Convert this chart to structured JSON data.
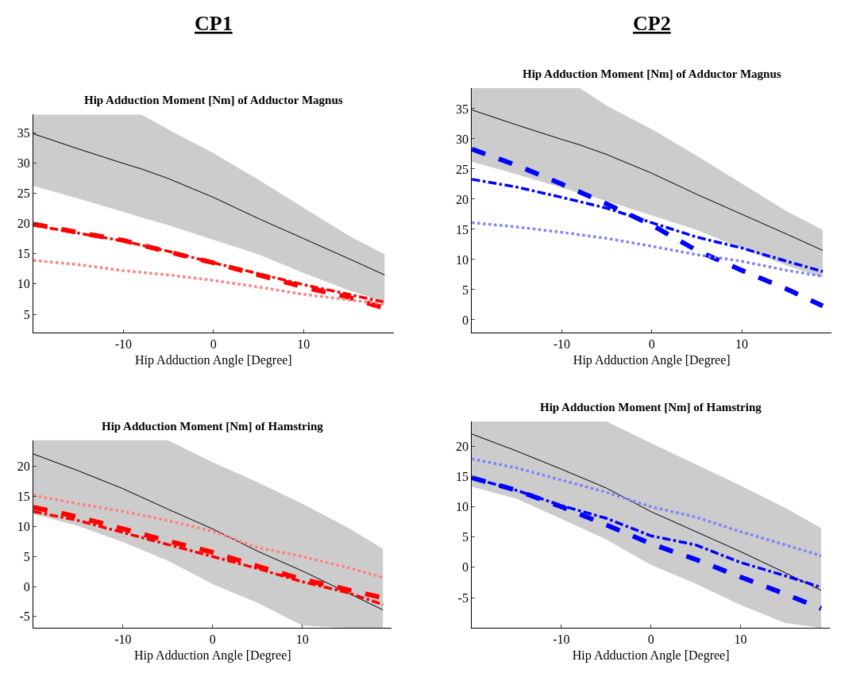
{
  "chart_data": [
    {
      "type": "line",
      "title": "Hip Adduction Moment [Nm] of Adductor Magnus",
      "xlabel": "Hip Adduction Angle [Degree]",
      "annotations": [
        "CP1"
      ],
      "xlim": [
        -20,
        20
      ],
      "xticks": [
        -10,
        0,
        10
      ],
      "ylim": [
        2,
        38
      ],
      "yticks": [
        5,
        10,
        15,
        20,
        25,
        30,
        35
      ],
      "series": [
        {
          "color": "#000000",
          "line_style": "solid",
          "x": [
            -20,
            -15,
            -10,
            -8,
            -5,
            0,
            5,
            10,
            15,
            19
          ],
          "values": [
            34.8,
            32.3,
            29.9,
            29.0,
            27.4,
            24.3,
            20.8,
            17.5,
            14.2,
            11.5
          ],
          "lower": [
            26.2,
            24.1,
            21.9,
            21.0,
            19.7,
            17.3,
            14.9,
            11.8,
            9.0,
            7.0
          ],
          "upper": [
            38,
            38,
            38,
            38,
            35.5,
            31.6,
            27.2,
            22.6,
            18.0,
            14.9
          ]
        },
        {
          "color": "#ff0000",
          "line_style": "dashed",
          "x": [
            -20,
            -15,
            -10,
            -5,
            0,
            5,
            10,
            15,
            19
          ],
          "values": [
            19.9,
            18.5,
            17.2,
            15.3,
            13.5,
            11.5,
            9.5,
            7.8,
            6.0
          ]
        },
        {
          "color": "#ff0000",
          "line_style": "dashdot",
          "x": [
            -20,
            -15,
            -10,
            -5,
            0,
            5,
            10,
            15,
            19
          ],
          "values": [
            19.7,
            18.4,
            17.1,
            15.4,
            13.5,
            11.7,
            9.9,
            8.3,
            7.0
          ]
        },
        {
          "color": "#ff8080",
          "line_style": "dotted",
          "x": [
            -20,
            -15,
            -10,
            -5,
            0,
            5,
            10,
            15,
            19
          ],
          "values": [
            13.9,
            13.2,
            12.2,
            11.5,
            10.6,
            9.5,
            8.3,
            7.4,
            6.7
          ]
        }
      ]
    },
    {
      "type": "line",
      "title": "Hip Adduction Moment [Nm] of Adductor Magnus",
      "xlabel": "Hip Adduction Angle [Degree]",
      "annotations": [
        "CP2"
      ],
      "xlim": [
        -20,
        20
      ],
      "xticks": [
        -10,
        0,
        10
      ],
      "ylim": [
        -2.1,
        38.4
      ],
      "yticks": [
        0,
        5,
        10,
        15,
        20,
        25,
        30,
        35
      ],
      "series": [
        {
          "color": "#000000",
          "line_style": "solid",
          "x": [
            -20,
            -15,
            -10,
            -8,
            -5,
            0,
            5,
            10,
            15,
            19
          ],
          "values": [
            34.8,
            32.3,
            29.9,
            29.0,
            27.4,
            24.3,
            20.8,
            17.5,
            14.2,
            11.5
          ],
          "lower": [
            26.2,
            24.1,
            21.9,
            21.0,
            19.7,
            17.3,
            14.9,
            11.8,
            9.0,
            7.0
          ],
          "upper": [
            38.4,
            38.4,
            38.4,
            38.4,
            35.5,
            31.6,
            27.2,
            22.6,
            18.0,
            14.9
          ]
        },
        {
          "color": "#0000ff",
          "line_style": "dashed",
          "x": [
            -20,
            -15,
            -10,
            -5,
            0,
            5,
            10,
            15,
            19
          ],
          "values": [
            28.3,
            25.6,
            22.5,
            19.2,
            15.7,
            11.5,
            8.2,
            5.1,
            2.3
          ]
        },
        {
          "color": "#0000ff",
          "line_style": "dashdot",
          "x": [
            -20,
            -15,
            -10,
            -5,
            0,
            5,
            10,
            15,
            19
          ],
          "values": [
            23.3,
            22.0,
            20.3,
            18.5,
            16.1,
            13.7,
            11.9,
            9.7,
            8.0
          ]
        },
        {
          "color": "#8080ff",
          "line_style": "dotted",
          "x": [
            -20,
            -15,
            -10,
            -5,
            0,
            5,
            10,
            15,
            19
          ],
          "values": [
            16.1,
            15.4,
            14.5,
            13.5,
            12.2,
            10.8,
            9.7,
            8.2,
            7.2
          ]
        }
      ]
    },
    {
      "type": "line",
      "title": "Hip Adduction Moment [Nm] of Hamstring",
      "xlabel": "Hip Adduction Angle [Degree]",
      "xlim": [
        -20,
        20
      ],
      "xticks": [
        -10,
        0,
        10
      ],
      "ylim": [
        -6.9,
        24.4
      ],
      "yticks": [
        -5,
        0,
        5,
        10,
        15,
        20
      ],
      "series": [
        {
          "color": "#000000",
          "line_style": "solid",
          "x": [
            -20,
            -15,
            -10,
            -5,
            0,
            5,
            10,
            15,
            19
          ],
          "values": [
            22.1,
            19.3,
            16.3,
            12.9,
            9.6,
            5.9,
            2.6,
            -1.0,
            -3.9
          ],
          "lower": [
            12.1,
            10.1,
            7.4,
            4.3,
            0.4,
            -2.7,
            -6.5,
            -6.9,
            -6.9
          ],
          "upper": [
            24.4,
            24.4,
            24.4,
            24.4,
            20.7,
            17.4,
            13.8,
            9.9,
            6.3
          ]
        },
        {
          "color": "#ff0000",
          "line_style": "dashed",
          "x": [
            -20,
            -15,
            -10,
            -5,
            0,
            5,
            10,
            15,
            19
          ],
          "values": [
            13.2,
            11.6,
            9.6,
            7.6,
            5.7,
            3.4,
            1.2,
            -0.5,
            -1.9
          ]
        },
        {
          "color": "#ff0000",
          "line_style": "dashdot",
          "x": [
            -20,
            -15,
            -10,
            -5,
            0,
            5,
            10,
            15,
            19
          ],
          "values": [
            12.5,
            11.0,
            9.0,
            7.0,
            5.0,
            3.0,
            0.8,
            -1.0,
            -3.0
          ]
        },
        {
          "color": "#ff8080",
          "line_style": "dotted",
          "x": [
            -20,
            -15,
            -10,
            -5,
            0,
            5,
            10,
            15,
            19
          ],
          "values": [
            15.2,
            13.8,
            12.5,
            11.0,
            9.2,
            6.5,
            5.0,
            3.2,
            1.5
          ]
        }
      ]
    },
    {
      "type": "line",
      "title": "Hip Adduction Moment [Nm] of Hamstring",
      "xlabel": "Hip Adduction Angle [Degree]",
      "xlim": [
        -20,
        20
      ],
      "xticks": [
        -10,
        0,
        10
      ],
      "ylim": [
        -10,
        24.1
      ],
      "yticks": [
        -5,
        0,
        5,
        10,
        15,
        20
      ],
      "series": [
        {
          "color": "#000000",
          "line_style": "solid",
          "x": [
            -20,
            -15,
            -10,
            -5,
            0,
            5,
            10,
            15,
            19
          ],
          "values": [
            22.0,
            19.2,
            16.2,
            13.1,
            9.2,
            5.9,
            2.6,
            -0.9,
            -3.8
          ],
          "lower": [
            13.3,
            11.3,
            8.0,
            4.6,
            0.4,
            -2.7,
            -6.2,
            -9.2,
            -10
          ],
          "upper": [
            24.1,
            24.1,
            24.1,
            24.1,
            20.5,
            17.0,
            13.5,
            9.8,
            6.5
          ]
        },
        {
          "color": "#0000ff",
          "line_style": "dashed",
          "x": [
            -20,
            -15,
            -10,
            -5,
            0,
            5,
            10,
            15,
            19
          ],
          "values": [
            14.8,
            12.7,
            10.0,
            7.0,
            3.9,
            1.3,
            -1.6,
            -4.4,
            -6.8
          ]
        },
        {
          "color": "#0000ff",
          "line_style": "dashdot",
          "x": [
            -20,
            -15,
            -10,
            -5,
            0,
            5,
            10,
            15,
            19
          ],
          "values": [
            14.8,
            12.7,
            10.2,
            8.1,
            5.2,
            3.7,
            0.8,
            -1.4,
            -3.3
          ]
        },
        {
          "color": "#8080ff",
          "line_style": "dotted",
          "x": [
            -20,
            -15,
            -10,
            -5,
            0,
            5,
            10,
            15,
            19
          ],
          "values": [
            17.9,
            16.4,
            14.4,
            12.4,
            10.0,
            8.3,
            5.9,
            3.7,
            1.9
          ]
        }
      ]
    }
  ]
}
